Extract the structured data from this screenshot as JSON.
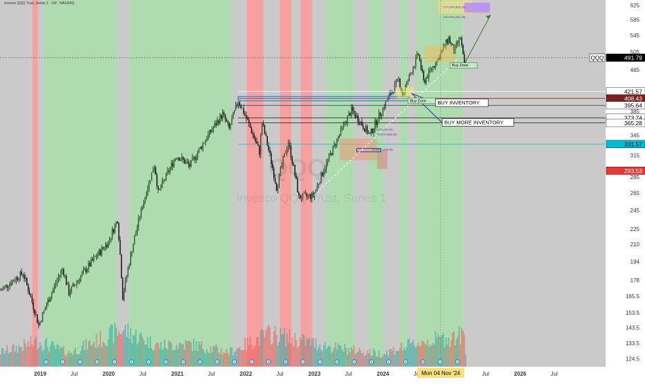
{
  "header": {
    "title": "Invesco QQQ Trust, Series 1 · 1W · NASDAQ"
  },
  "watermark": {
    "ticker": "QQQ",
    "name": "Invesco QQQ Trust, Series 1"
  },
  "colors": {
    "bull_band": "#4caf50",
    "bear_band": "#ef5350",
    "neutral_band": "#9e9e9e",
    "candle": "#000000",
    "volume_up": "#26a69a",
    "volume_down": "#ef5350",
    "projection": "#2e7d32",
    "inventory_line": "#1e3fa8",
    "price_marker": "#000000",
    "red_marker": "#e53935",
    "dark_red_marker": "#7b1f1f",
    "cyan_marker": "#00bcd4",
    "cursor_label": "#f7e07a"
  },
  "chart_data": {
    "type": "candlestick",
    "symbol": "QQQ",
    "interval": "1W",
    "y_axis": {
      "scale": "log",
      "range": [
        120,
        640
      ],
      "ticks": [
        625,
        585,
        545,
        505,
        465,
        425,
        385,
        345,
        315,
        285,
        265,
        245,
        225,
        210,
        194,
        178,
        165.5,
        153.5,
        143.5,
        133.5,
        124.5
      ]
    },
    "x_axis": {
      "range": [
        "2018-06-01",
        "2027-04-01"
      ],
      "ticks": [
        {
          "label": "2019",
          "date": "2019-01-01"
        },
        {
          "label": "Jul",
          "date": "2019-07-01"
        },
        {
          "label": "2020",
          "date": "2020-01-01"
        },
        {
          "label": "Jul",
          "date": "2020-07-01"
        },
        {
          "label": "2021",
          "date": "2021-01-01"
        },
        {
          "label": "Jul",
          "date": "2021-07-01"
        },
        {
          "label": "2022",
          "date": "2022-01-01"
        },
        {
          "label": "Jul",
          "date": "2022-07-01"
        },
        {
          "label": "2023",
          "date": "2023-01-01"
        },
        {
          "label": "Jul",
          "date": "2023-07-01"
        },
        {
          "label": "2024",
          "date": "2024-01-01"
        },
        {
          "label": "Jul",
          "date": "2024-07-01"
        },
        {
          "label": "Jul",
          "date": "2025-07-01"
        },
        {
          "label": "2026",
          "date": "2026-01-01"
        },
        {
          "label": "Jul",
          "date": "2026-07-01"
        }
      ],
      "cursor_label": "Mon 04 Nov '24",
      "cursor_date": "2024-11-04"
    },
    "price_path": [
      [
        "2018-06-04",
        170
      ],
      [
        "2018-10-01",
        184
      ],
      [
        "2018-12-24",
        145
      ],
      [
        "2019-05-01",
        188
      ],
      [
        "2019-06-03",
        168
      ],
      [
        "2019-12-30",
        212
      ],
      [
        "2020-02-17",
        235
      ],
      [
        "2020-03-16",
        165
      ],
      [
        "2020-09-01",
        302
      ],
      [
        "2020-09-21",
        265
      ],
      [
        "2020-12-28",
        315
      ],
      [
        "2021-03-08",
        300
      ],
      [
        "2021-08-30",
        380
      ],
      [
        "2021-10-04",
        355
      ],
      [
        "2021-11-22",
        405
      ],
      [
        "2022-03-14",
        320
      ],
      [
        "2022-03-28",
        365
      ],
      [
        "2022-06-13",
        272
      ],
      [
        "2022-08-15",
        335
      ],
      [
        "2022-10-10",
        260
      ],
      [
        "2022-12-27",
        262
      ],
      [
        "2023-04-03",
        320
      ],
      [
        "2023-07-17",
        387
      ],
      [
        "2023-10-23",
        345
      ],
      [
        "2024-03-25",
        445
      ],
      [
        "2024-04-15",
        415
      ],
      [
        "2024-07-08",
        500
      ],
      [
        "2024-08-05",
        440
      ],
      [
        "2024-10-28",
        495
      ],
      [
        "2024-12-16",
        538
      ],
      [
        "2025-01-13",
        505
      ],
      [
        "2025-02-17",
        540
      ],
      [
        "2025-03-10",
        470
      ],
      [
        "2025-03-17",
        480
      ]
    ],
    "volume_path": [
      [
        "2018-06-04",
        0.36
      ],
      [
        "2018-12-24",
        0.62
      ],
      [
        "2019-06-03",
        0.34
      ],
      [
        "2020-03-16",
        0.92
      ],
      [
        "2020-09-21",
        0.52
      ],
      [
        "2021-03-08",
        0.56
      ],
      [
        "2021-10-04",
        0.36
      ],
      [
        "2022-05-09",
        0.82
      ],
      [
        "2022-10-10",
        0.66
      ],
      [
        "2023-05-01",
        0.46
      ],
      [
        "2023-12-25",
        0.32
      ],
      [
        "2024-04-15",
        0.48
      ],
      [
        "2024-08-05",
        0.62
      ],
      [
        "2025-03-10",
        0.78
      ]
    ],
    "background_bands": [
      {
        "start": "2018-06-01",
        "end": "2018-11-20",
        "state": "neutral"
      },
      {
        "start": "2018-11-20",
        "end": "2018-12-20",
        "state": "bear"
      },
      {
        "start": "2018-12-20",
        "end": "2019-01-20",
        "state": "neutral"
      },
      {
        "start": "2019-01-20",
        "end": "2020-02-15",
        "state": "bull"
      },
      {
        "start": "2020-02-15",
        "end": "2020-04-20",
        "state": "neutral"
      },
      {
        "start": "2020-04-20",
        "end": "2021-10-20",
        "state": "bull"
      },
      {
        "start": "2021-10-20",
        "end": "2022-01-05",
        "state": "neutral"
      },
      {
        "start": "2022-01-05",
        "end": "2022-04-05",
        "state": "bear"
      },
      {
        "start": "2022-04-05",
        "end": "2022-07-01",
        "state": "neutral"
      },
      {
        "start": "2022-07-01",
        "end": "2022-09-01",
        "state": "bear"
      },
      {
        "start": "2022-09-01",
        "end": "2022-10-20",
        "state": "neutral"
      },
      {
        "start": "2022-10-20",
        "end": "2022-12-20",
        "state": "bear"
      },
      {
        "start": "2022-12-20",
        "end": "2023-03-05",
        "state": "neutral"
      },
      {
        "start": "2023-03-05",
        "end": "2023-08-01",
        "state": "bull"
      },
      {
        "start": "2023-08-01",
        "end": "2023-10-20",
        "state": "neutral"
      },
      {
        "start": "2023-10-20",
        "end": "2024-01-05",
        "state": "bull"
      },
      {
        "start": "2024-01-05",
        "end": "2024-04-01",
        "state": "neutral"
      },
      {
        "start": "2024-04-01",
        "end": "2024-05-15",
        "state": "bull"
      },
      {
        "start": "2024-05-15",
        "end": "2024-06-25",
        "state": "neutral"
      },
      {
        "start": "2024-06-25",
        "end": "2025-03-05",
        "state": "bull"
      },
      {
        "start": "2025-03-05",
        "end": "2027-04-01",
        "state": "neutral"
      }
    ],
    "price_labels": [
      {
        "value": "491.79",
        "price": 491.79,
        "style": "black",
        "prefix": "QQQ"
      },
      {
        "value": "421.57",
        "price": 421.57,
        "style": "white"
      },
      {
        "value": "408.43",
        "price": 408.43,
        "style": "darkred"
      },
      {
        "value": "395.64",
        "price": 395.64,
        "style": "white"
      },
      {
        "value": "373.74",
        "price": 373.74,
        "style": "white"
      },
      {
        "value": "365.28",
        "price": 365.28,
        "style": "white"
      },
      {
        "value": "331.57",
        "price": 331.57,
        "style": "cyan"
      },
      {
        "value": "293.53",
        "price": 293.53,
        "style": "red"
      }
    ],
    "annotations": [
      {
        "text": "BUY INVENTORY",
        "date": "2024-10-07",
        "price": 396,
        "line_from": [
          "2024-06-01",
          418
        ]
      },
      {
        "text": "BUY MORE INVENTORY",
        "date": "2024-11-12",
        "price": 362,
        "line_from": [
          "2024-06-01",
          418
        ]
      },
      {
        "text": "Buy Zone",
        "date": "2024-12-23",
        "price": 470
      },
      {
        "text": "Buy Zone",
        "date": "2024-05-13",
        "price": 400
      }
    ],
    "fib_labels": [
      {
        "text": "127.20% (615.20)",
        "date": "2024-11-18",
        "price": 617
      },
      {
        "text": "100.00% (591.39)",
        "date": "2024-11-18",
        "price": 590
      },
      {
        "text": "50.00% (254.99)",
        "date": "2023-11-06",
        "price": 353
      },
      {
        "text": "61.80% (338.36)",
        "date": "2023-11-06",
        "price": 322
      },
      {
        "text": "78.60% (338.52)",
        "date": "2023-11-27",
        "price": 345
      }
    ],
    "projection": {
      "from": [
        "2025-03-10",
        478
      ],
      "to": [
        "2025-07-28",
        598
      ]
    }
  }
}
